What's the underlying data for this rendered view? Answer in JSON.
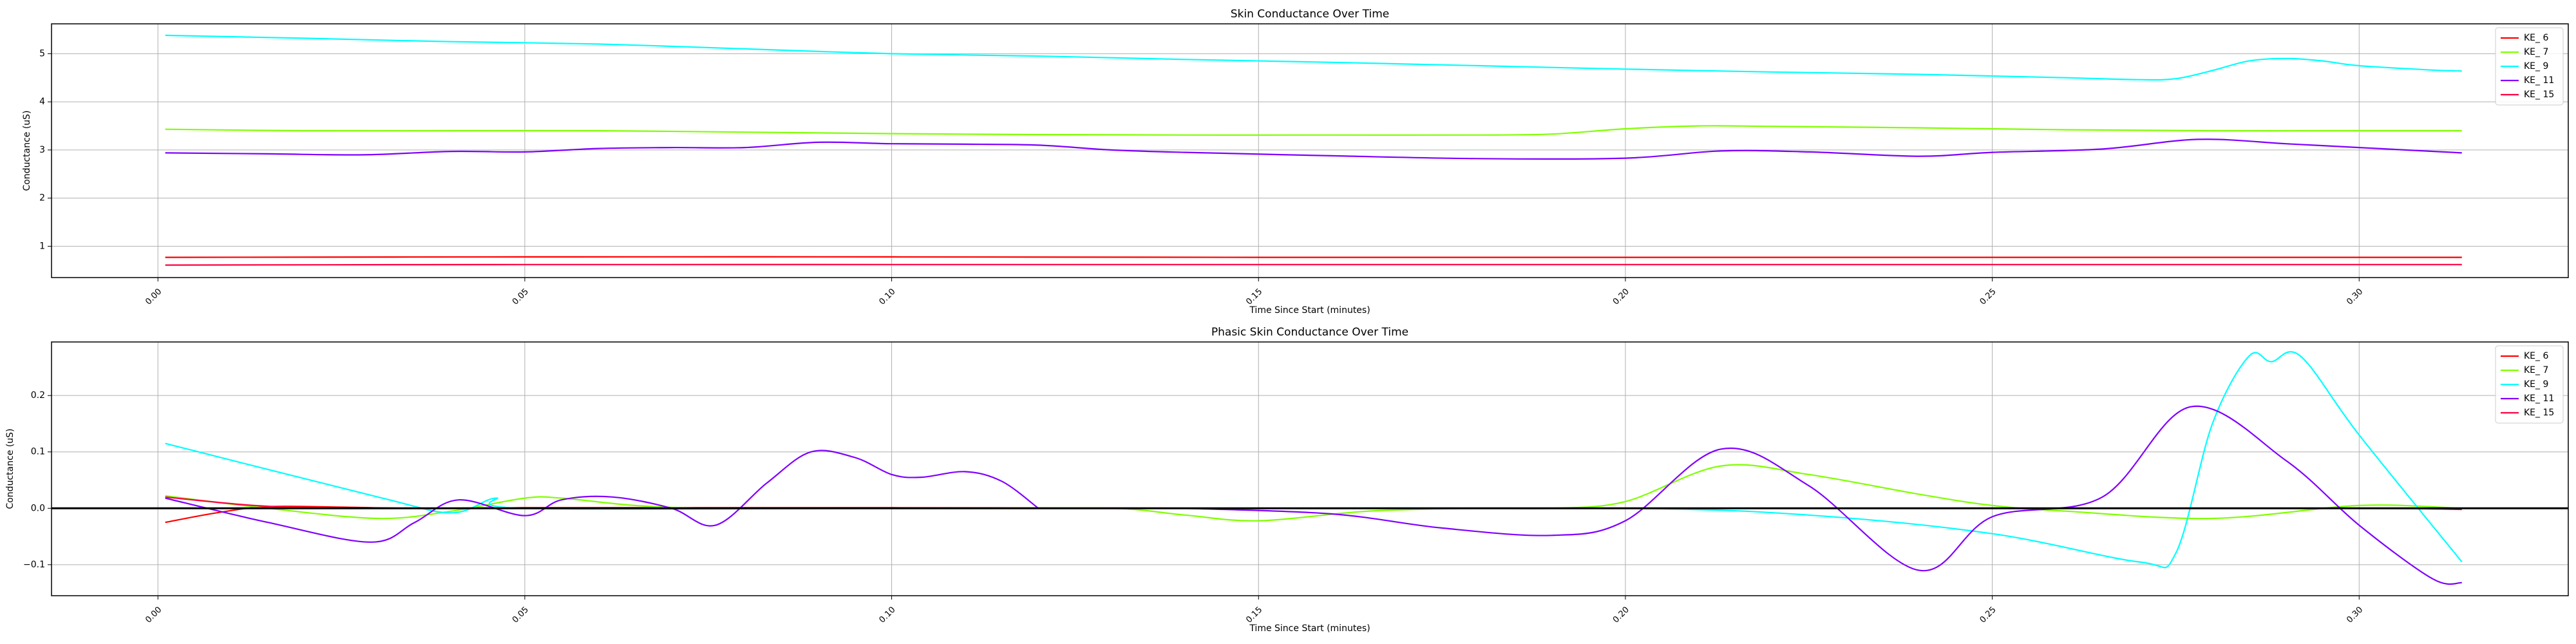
{
  "chart_data": [
    {
      "type": "line",
      "title": "Skin Conductance Over Time",
      "xlabel": "Time Since Start (minutes)",
      "ylabel": "Conductance (uS)",
      "xlim": [
        -0.0145,
        0.3285
      ],
      "ylim": [
        0.35,
        5.62
      ],
      "x_ticks": [
        0.0,
        0.05,
        0.1,
        0.15,
        0.2,
        0.25,
        0.3
      ],
      "x_tick_labels": [
        "0.00",
        "0.05",
        "0.10",
        "0.15",
        "0.20",
        "0.25",
        "0.30"
      ],
      "y_ticks": [
        1,
        2,
        3,
        4,
        5
      ],
      "y_tick_labels": [
        "1",
        "2",
        "3",
        "4",
        "5"
      ],
      "grid": true,
      "legend_position": "top-right",
      "series": [
        {
          "name": "KE_ 6",
          "color": "#ff0000",
          "x": [
            0.001,
            0.05,
            0.1,
            0.15,
            0.2,
            0.25,
            0.3,
            0.314
          ],
          "y": [
            0.77,
            0.78,
            0.78,
            0.77,
            0.77,
            0.77,
            0.77,
            0.77
          ]
        },
        {
          "name": "KE_ 7",
          "color": "#80ff00",
          "x": [
            0.001,
            0.02,
            0.04,
            0.06,
            0.08,
            0.1,
            0.12,
            0.14,
            0.16,
            0.18,
            0.19,
            0.2,
            0.21,
            0.22,
            0.24,
            0.26,
            0.28,
            0.3,
            0.314
          ],
          "y": [
            3.43,
            3.4,
            3.4,
            3.4,
            3.37,
            3.34,
            3.32,
            3.31,
            3.31,
            3.31,
            3.33,
            3.44,
            3.5,
            3.49,
            3.46,
            3.42,
            3.4,
            3.4,
            3.4
          ]
        },
        {
          "name": "KE_ 9",
          "color": "#00ffff",
          "x": [
            0.001,
            0.02,
            0.04,
            0.06,
            0.08,
            0.1,
            0.12,
            0.14,
            0.16,
            0.18,
            0.2,
            0.22,
            0.24,
            0.26,
            0.27,
            0.275,
            0.28,
            0.285,
            0.29,
            0.295,
            0.3,
            0.31,
            0.314
          ],
          "y": [
            5.38,
            5.32,
            5.25,
            5.2,
            5.1,
            5.0,
            4.95,
            4.88,
            4.82,
            4.75,
            4.68,
            4.62,
            4.57,
            4.5,
            4.46,
            4.48,
            4.65,
            4.85,
            4.9,
            4.85,
            4.75,
            4.66,
            4.64
          ]
        },
        {
          "name": "KE_ 11",
          "color": "#8000ff",
          "x": [
            0.001,
            0.015,
            0.028,
            0.04,
            0.05,
            0.06,
            0.07,
            0.08,
            0.09,
            0.1,
            0.11,
            0.12,
            0.13,
            0.14,
            0.16,
            0.18,
            0.2,
            0.213,
            0.225,
            0.24,
            0.25,
            0.265,
            0.278,
            0.29,
            0.3,
            0.314
          ],
          "y": [
            2.94,
            2.92,
            2.9,
            2.97,
            2.96,
            3.03,
            3.05,
            3.05,
            3.16,
            3.13,
            3.12,
            3.1,
            3.0,
            2.95,
            2.88,
            2.82,
            2.83,
            2.98,
            2.96,
            2.87,
            2.95,
            3.02,
            3.22,
            3.13,
            3.05,
            2.94
          ]
        },
        {
          "name": "KE_ 15",
          "color": "#ff0040",
          "x": [
            0.001,
            0.05,
            0.1,
            0.15,
            0.2,
            0.25,
            0.3,
            0.314
          ],
          "y": [
            0.61,
            0.62,
            0.62,
            0.62,
            0.62,
            0.62,
            0.62,
            0.62
          ]
        }
      ]
    },
    {
      "type": "line",
      "title": "Phasic Skin Conductance Over Time",
      "xlabel": "Time Since Start (minutes)",
      "ylabel": "Conductance (uS)",
      "xlim": [
        -0.0145,
        0.3285
      ],
      "ylim": [
        -0.155,
        0.295
      ],
      "x_ticks": [
        0.0,
        0.05,
        0.1,
        0.15,
        0.2,
        0.25,
        0.3
      ],
      "x_tick_labels": [
        "0.00",
        "0.05",
        "0.10",
        "0.15",
        "0.20",
        "0.25",
        "0.30"
      ],
      "y_ticks": [
        -0.1,
        0.0,
        0.1,
        0.2
      ],
      "y_tick_labels": [
        "−0.1",
        "0.0",
        "0.1",
        "0.2"
      ],
      "hline": 0,
      "grid": true,
      "legend_position": "top-right",
      "series": [
        {
          "name": "KE_ 6",
          "color": "#ff0000",
          "x": [
            0.001,
            0.008,
            0.015,
            0.025,
            0.035,
            0.05,
            0.1,
            0.15,
            0.2,
            0.25,
            0.3,
            0.314
          ],
          "y": [
            -0.025,
            -0.008,
            0.003,
            0.002,
            0.0,
            0.001,
            0.001,
            0.0,
            0.0,
            0.0,
            0.0,
            0.0
          ]
        },
        {
          "name": "KE_ 7",
          "color": "#80ff00",
          "x": [
            0.001,
            0.015,
            0.03,
            0.04,
            0.05,
            0.055,
            0.065,
            0.075,
            0.09,
            0.11,
            0.13,
            0.14,
            0.15,
            0.165,
            0.18,
            0.19,
            0.2,
            0.213,
            0.225,
            0.24,
            0.25,
            0.26,
            0.28,
            0.3,
            0.314
          ],
          "y": [
            0.022,
            0.0,
            -0.018,
            -0.005,
            0.018,
            0.018,
            0.005,
            0.0,
            0.0,
            0.0,
            0.0,
            -0.012,
            -0.022,
            -0.005,
            0.0,
            0.0,
            0.012,
            0.075,
            0.06,
            0.025,
            0.005,
            -0.005,
            -0.018,
            0.005,
            0.0
          ]
        },
        {
          "name": "KE_ 9",
          "color": "#00ffff",
          "x": [
            0.001,
            0.03,
            0.04,
            0.046,
            0.05,
            0.1,
            0.15,
            0.2,
            0.225,
            0.25,
            0.27,
            0.275,
            0.28,
            0.285,
            0.288,
            0.292,
            0.3,
            0.314
          ],
          "y": [
            0.115,
            0.02,
            -0.008,
            0.018,
            0.0,
            0.0,
            0.0,
            0.0,
            -0.012,
            -0.045,
            -0.095,
            -0.08,
            0.15,
            0.27,
            0.26,
            0.27,
            0.13,
            -0.095
          ]
        },
        {
          "name": "KE_ 11",
          "color": "#8000ff",
          "x": [
            0.001,
            0.015,
            0.029,
            0.035,
            0.041,
            0.05,
            0.055,
            0.062,
            0.07,
            0.076,
            0.083,
            0.089,
            0.095,
            0.1,
            0.104,
            0.11,
            0.115,
            0.12,
            0.13,
            0.14,
            0.16,
            0.175,
            0.19,
            0.2,
            0.213,
            0.225,
            0.24,
            0.25,
            0.265,
            0.277,
            0.29,
            0.3,
            0.31,
            0.314
          ],
          "y": [
            0.018,
            -0.025,
            -0.06,
            -0.025,
            0.015,
            -0.013,
            0.015,
            0.02,
            0.0,
            -0.03,
            0.045,
            0.1,
            0.09,
            0.06,
            0.055,
            0.065,
            0.048,
            0.0,
            null,
            0.0,
            -0.01,
            -0.035,
            -0.048,
            -0.022,
            0.105,
            0.04,
            -0.11,
            -0.015,
            0.02,
            0.18,
            0.085,
            -0.03,
            -0.125,
            -0.132
          ]
        },
        {
          "name": "KE_ 15",
          "color": "#ff0040",
          "x": [
            0.001,
            0.012,
            0.02,
            0.03,
            0.05,
            0.1,
            0.15,
            0.2,
            0.25,
            0.3,
            0.314
          ],
          "y": [
            0.02,
            0.006,
            0.001,
            0.0,
            0.0,
            0.0,
            0.0,
            0.0,
            0.0,
            0.0,
            -0.002
          ]
        }
      ]
    }
  ]
}
